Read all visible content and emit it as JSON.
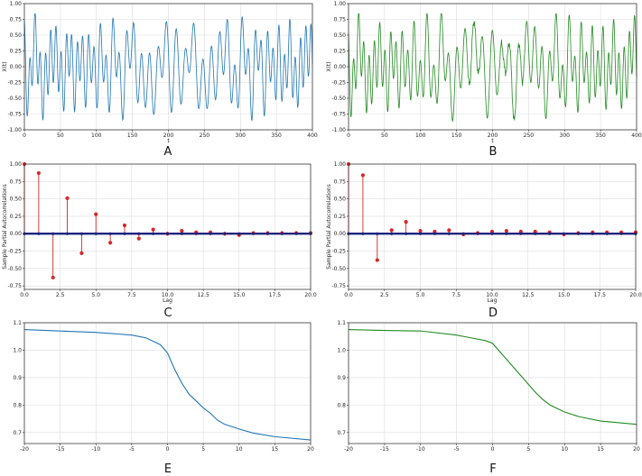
{
  "chart_data": [
    {
      "id": "A",
      "type": "line",
      "panel_label": "A",
      "xlabel": "t",
      "ylabel": "X(t)",
      "xlim": [
        0,
        400
      ],
      "ylim": [
        -1.0,
        1.0
      ],
      "xticks": [
        0,
        50,
        100,
        150,
        200,
        250,
        300,
        350,
        400
      ],
      "yticks": [
        -1.0,
        -0.75,
        -0.5,
        -0.25,
        0.0,
        0.25,
        0.5,
        0.75,
        1.0
      ],
      "ytick_labels": [
        "-1.00",
        "-0.75",
        "-0.50",
        "-0.25",
        "0.00",
        "0.25",
        "0.50",
        "0.75",
        "1.00"
      ],
      "color": "#1f77b4",
      "grid": true,
      "series": [
        {
          "x": [
            0,
            400
          ],
          "values": [
            0,
            0
          ],
          "note_values": "chaotic oscillation between about -0.88 and 0.85"
        }
      ]
    },
    {
      "id": "B",
      "type": "line",
      "panel_label": "B",
      "xlabel": "t",
      "ylabel": "X(t)",
      "xlim": [
        0,
        400
      ],
      "ylim": [
        -1.0,
        1.0
      ],
      "xticks": [
        0,
        50,
        100,
        150,
        200,
        250,
        300,
        350,
        400
      ],
      "yticks": [
        -1.0,
        -0.75,
        -0.5,
        -0.25,
        0.0,
        0.25,
        0.5,
        0.75,
        1.0
      ],
      "ytick_labels": [
        "-1.00",
        "-0.75",
        "-0.50",
        "-0.25",
        "0.00",
        "0.25",
        "0.50",
        "0.75",
        "1.00"
      ],
      "color": "#228b22",
      "grid": true,
      "series": [
        {
          "x": [
            0,
            400
          ],
          "values": [
            0,
            0
          ]
        }
      ]
    },
    {
      "id": "C",
      "type": "stem",
      "panel_label": "C",
      "xlabel": "Lag",
      "ylabel": "Sample Partial Autocorrelations",
      "xlim": [
        0,
        20
      ],
      "ylim": [
        -0.8,
        1.0
      ],
      "xticks": [
        0,
        2.5,
        5,
        7.5,
        10,
        12.5,
        15,
        17.5,
        20
      ],
      "xtick_labels": [
        "0.0",
        "2.5",
        "5.0",
        "7.5",
        "10.0",
        "12.5",
        "15.0",
        "17.5",
        "20.0"
      ],
      "yticks": [
        -0.75,
        -0.5,
        -0.25,
        0.0,
        0.25,
        0.5,
        0.75,
        1.0
      ],
      "ytick_labels": [
        "-0.75",
        "-0.50",
        "-0.25",
        "0.00",
        "0.25",
        "0.50",
        "0.75",
        "1.00"
      ],
      "color": "#d62728",
      "grid": true,
      "lags": [
        0,
        1,
        2,
        3,
        4,
        5,
        6,
        7,
        8,
        9,
        10,
        11,
        12,
        13,
        14,
        15,
        16,
        17,
        18,
        19,
        20
      ],
      "values": [
        1.0,
        0.87,
        -0.63,
        0.51,
        -0.28,
        0.28,
        -0.13,
        0.12,
        -0.07,
        0.06,
        0.0,
        0.04,
        0.02,
        0.02,
        0.0,
        -0.02,
        0.01,
        0.01,
        0.01,
        0.01,
        0.01
      ]
    },
    {
      "id": "D",
      "type": "stem",
      "panel_label": "D",
      "xlabel": "Lag",
      "ylabel": "Sample Partial Autocorrelations",
      "xlim": [
        0,
        20
      ],
      "ylim": [
        -0.8,
        1.0
      ],
      "xticks": [
        0,
        2.5,
        5,
        7.5,
        10,
        12.5,
        15,
        17.5,
        20
      ],
      "xtick_labels": [
        "0.0",
        "2.5",
        "5.0",
        "7.5",
        "10.0",
        "12.5",
        "15.0",
        "17.5",
        "20.0"
      ],
      "yticks": [
        -0.75,
        -0.5,
        -0.25,
        0.0,
        0.25,
        0.5,
        0.75,
        1.0
      ],
      "ytick_labels": [
        "-0.75",
        "-0.50",
        "-0.25",
        "0.00",
        "0.25",
        "0.50",
        "0.75",
        "1.00"
      ],
      "color": "#d62728",
      "grid": true,
      "lags": [
        0,
        1,
        2,
        3,
        4,
        5,
        6,
        7,
        8,
        9,
        10,
        11,
        12,
        13,
        14,
        15,
        16,
        17,
        18,
        19,
        20
      ],
      "values": [
        1.0,
        0.84,
        -0.38,
        0.05,
        0.17,
        0.04,
        0.03,
        0.05,
        -0.01,
        0.01,
        0.03,
        0.04,
        0.03,
        0.03,
        0.02,
        -0.01,
        0.01,
        0.02,
        0.02,
        0.02,
        0.02
      ]
    },
    {
      "id": "E",
      "type": "line",
      "panel_label": "E",
      "xlabel": "",
      "ylabel": "",
      "xlim": [
        -20,
        20
      ],
      "ylim": [
        0.66,
        1.1
      ],
      "xticks": [
        -20,
        -15,
        -10,
        -5,
        0,
        5,
        10,
        15,
        20
      ],
      "yticks": [
        0.7,
        0.8,
        0.9,
        1.0,
        1.1
      ],
      "ytick_labels": [
        "0.7",
        "0.8",
        "0.9",
        "1.0",
        "1.1"
      ],
      "color": "#1f77b4",
      "grid": true,
      "series": [
        {
          "x": [
            -20,
            -15,
            -10,
            -5,
            -3,
            -1,
            0,
            1,
            2,
            3,
            4,
            5,
            6,
            7,
            8,
            10,
            12,
            15,
            20
          ],
          "values": [
            1.075,
            1.07,
            1.065,
            1.055,
            1.045,
            1.02,
            0.99,
            0.93,
            0.88,
            0.84,
            0.815,
            0.79,
            0.77,
            0.745,
            0.73,
            0.713,
            0.698,
            0.685,
            0.673
          ]
        }
      ]
    },
    {
      "id": "F",
      "type": "line",
      "panel_label": "F",
      "xlabel": "",
      "ylabel": "",
      "xlim": [
        -20,
        20
      ],
      "ylim": [
        0.66,
        1.1
      ],
      "xticks": [
        -20,
        -15,
        -10,
        -5,
        0,
        5,
        10,
        15,
        20
      ],
      "yticks": [
        0.7,
        0.8,
        0.9,
        1.0,
        1.1
      ],
      "ytick_labels": [
        "0.7",
        "0.8",
        "0.9",
        "1.0",
        "1.1"
      ],
      "color": "#228b22",
      "grid": true,
      "series": [
        {
          "x": [
            -20,
            -15,
            -10,
            -5,
            -3,
            -1,
            0,
            1,
            2,
            3,
            4,
            5,
            6,
            7,
            8,
            10,
            12,
            15,
            20
          ],
          "values": [
            1.075,
            1.072,
            1.07,
            1.055,
            1.045,
            1.035,
            1.025,
            0.995,
            0.965,
            0.935,
            0.905,
            0.875,
            0.845,
            0.82,
            0.8,
            0.775,
            0.758,
            0.742,
            0.73
          ]
        }
      ]
    }
  ]
}
